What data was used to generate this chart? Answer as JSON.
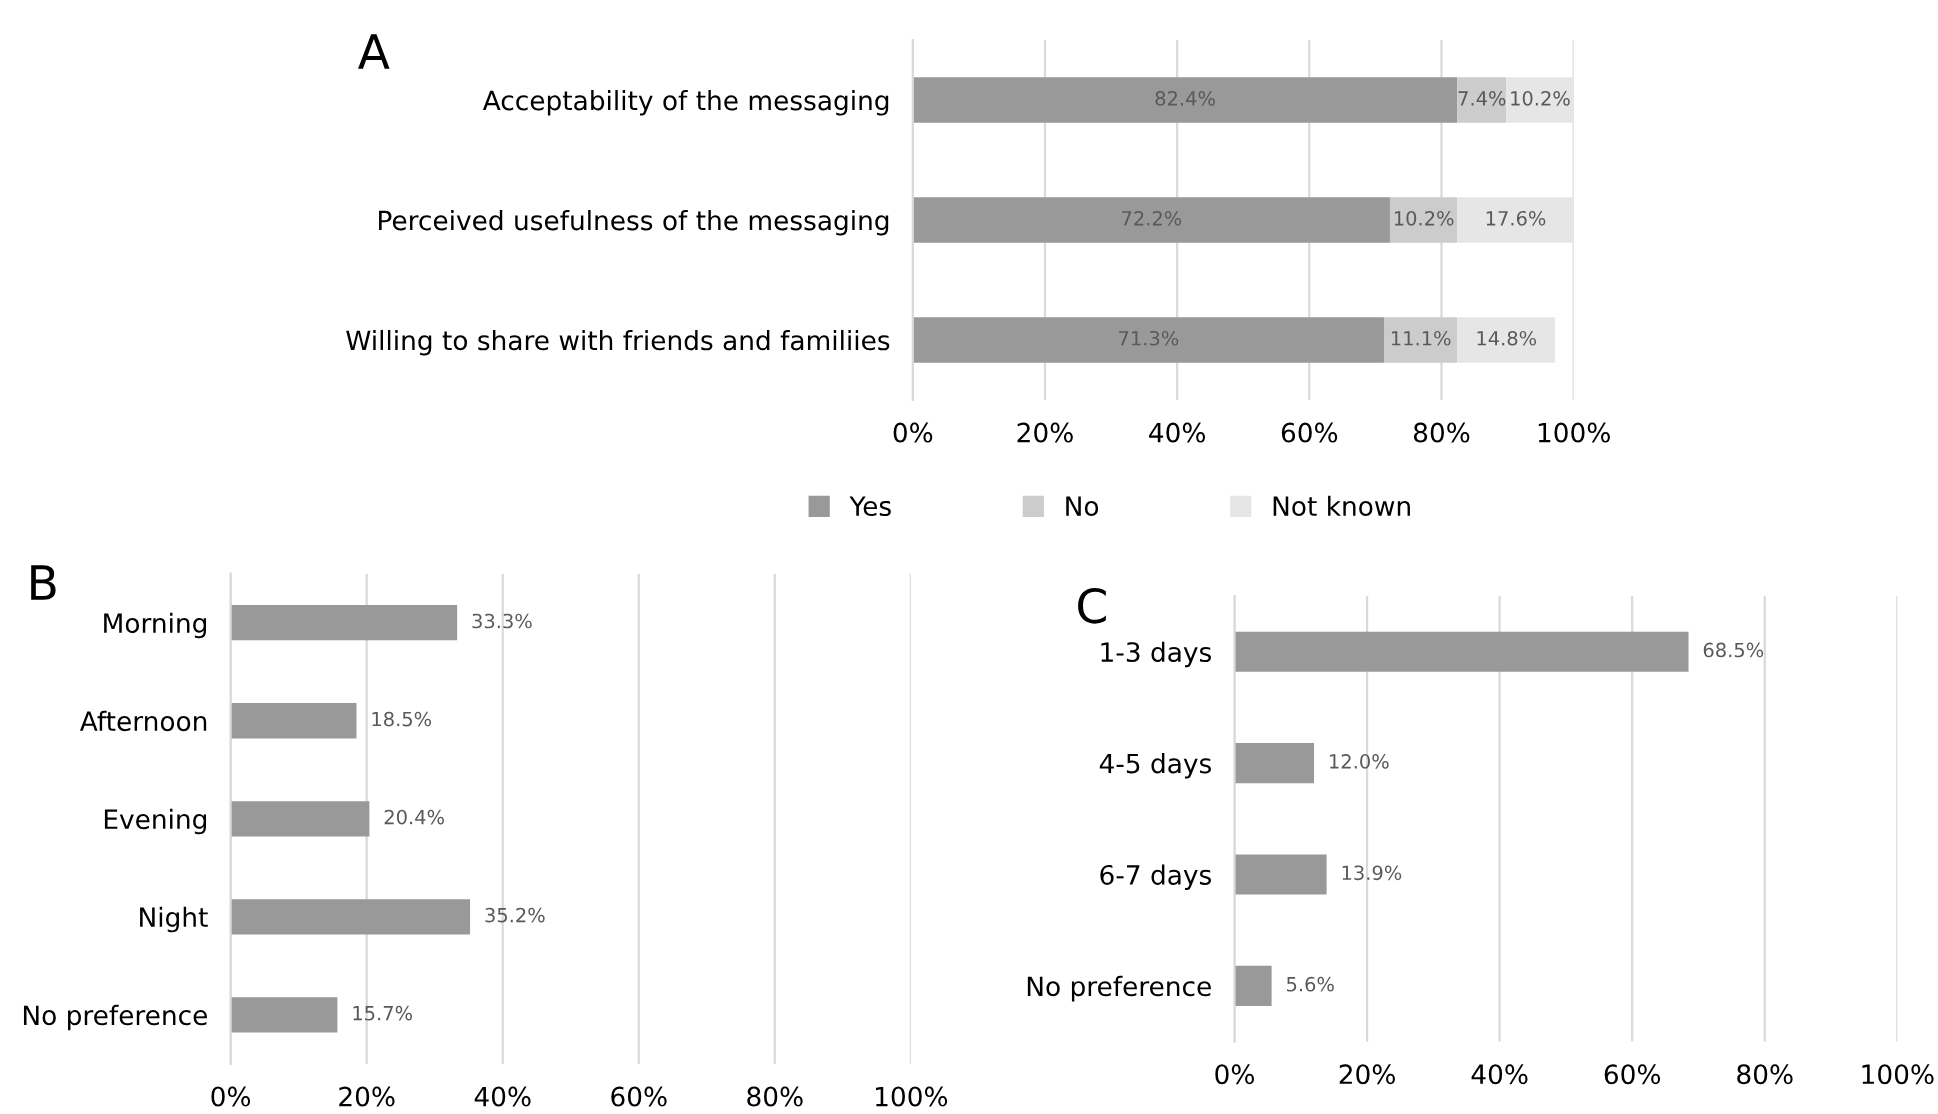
{
  "chart_data": [
    {
      "type": "bar",
      "title": "A",
      "orientation": "horizontal",
      "stacked": true,
      "categories": [
        "Acceptability of the messaging",
        "Perceived usefulness of the messaging",
        "Willing to share with friends and familiies"
      ],
      "series": [
        {
          "name": "Yes",
          "color": "#999999",
          "values": [
            82.4,
            72.2,
            71.3
          ],
          "value_labels": [
            "82.4%",
            "72.2%",
            "71.3%"
          ]
        },
        {
          "name": "No",
          "color": "#cccccc",
          "values": [
            7.4,
            10.2,
            11.1
          ],
          "value_labels": [
            "7.4%",
            "10.2%",
            "11.1%"
          ]
        },
        {
          "name": "Not known",
          "color": "#e6e6e6",
          "values": [
            10.2,
            17.6,
            14.8
          ],
          "value_labels": [
            "10.2%",
            "17.6%",
            "14.8%"
          ]
        }
      ],
      "xlim": [
        0,
        100
      ],
      "xticks": [
        {
          "value": 0,
          "label": "0%"
        },
        {
          "value": 20,
          "label": "20%"
        },
        {
          "value": 40,
          "label": "40%"
        },
        {
          "value": 60,
          "label": "60%"
        },
        {
          "value": 80,
          "label": "80%"
        },
        {
          "value": 100,
          "label": "100%"
        }
      ],
      "grid": "x",
      "legend": "bottom"
    },
    {
      "type": "bar",
      "title": "B",
      "orientation": "horizontal",
      "categories": [
        "Morning",
        "Afternoon",
        "Evening",
        "Night",
        "No preference"
      ],
      "series": [
        {
          "color": "#999999",
          "values": [
            33.3,
            18.5,
            20.4,
            35.2,
            15.7
          ],
          "value_labels": [
            "33.3%",
            "18.5%",
            "20.4%",
            "35.2%",
            "15.7%"
          ]
        }
      ],
      "xlim": [
        0,
        100
      ],
      "xticks": [
        {
          "value": 0,
          "label": "0%"
        },
        {
          "value": 20,
          "label": "20%"
        },
        {
          "value": 40,
          "label": "40%"
        },
        {
          "value": 60,
          "label": "60%"
        },
        {
          "value": 80,
          "label": "80%"
        },
        {
          "value": 100,
          "label": "100%"
        }
      ],
      "grid": "x"
    },
    {
      "type": "bar",
      "title": "C",
      "orientation": "horizontal",
      "categories": [
        "1-3 days",
        "4-5 days",
        "6-7 days",
        "No preference"
      ],
      "series": [
        {
          "color": "#999999",
          "values": [
            68.5,
            12.0,
            13.9,
            5.6
          ],
          "value_labels": [
            "68.5%",
            "12.0%",
            "13.9%",
            "5.6%"
          ]
        }
      ],
      "xlim": [
        0,
        100
      ],
      "xticks": [
        {
          "value": 0,
          "label": "0%"
        },
        {
          "value": 20,
          "label": "20%"
        },
        {
          "value": 40,
          "label": "40%"
        },
        {
          "value": 60,
          "label": "60%"
        },
        {
          "value": 80,
          "label": "80%"
        },
        {
          "value": 100,
          "label": "100%"
        }
      ],
      "grid": "x"
    }
  ]
}
